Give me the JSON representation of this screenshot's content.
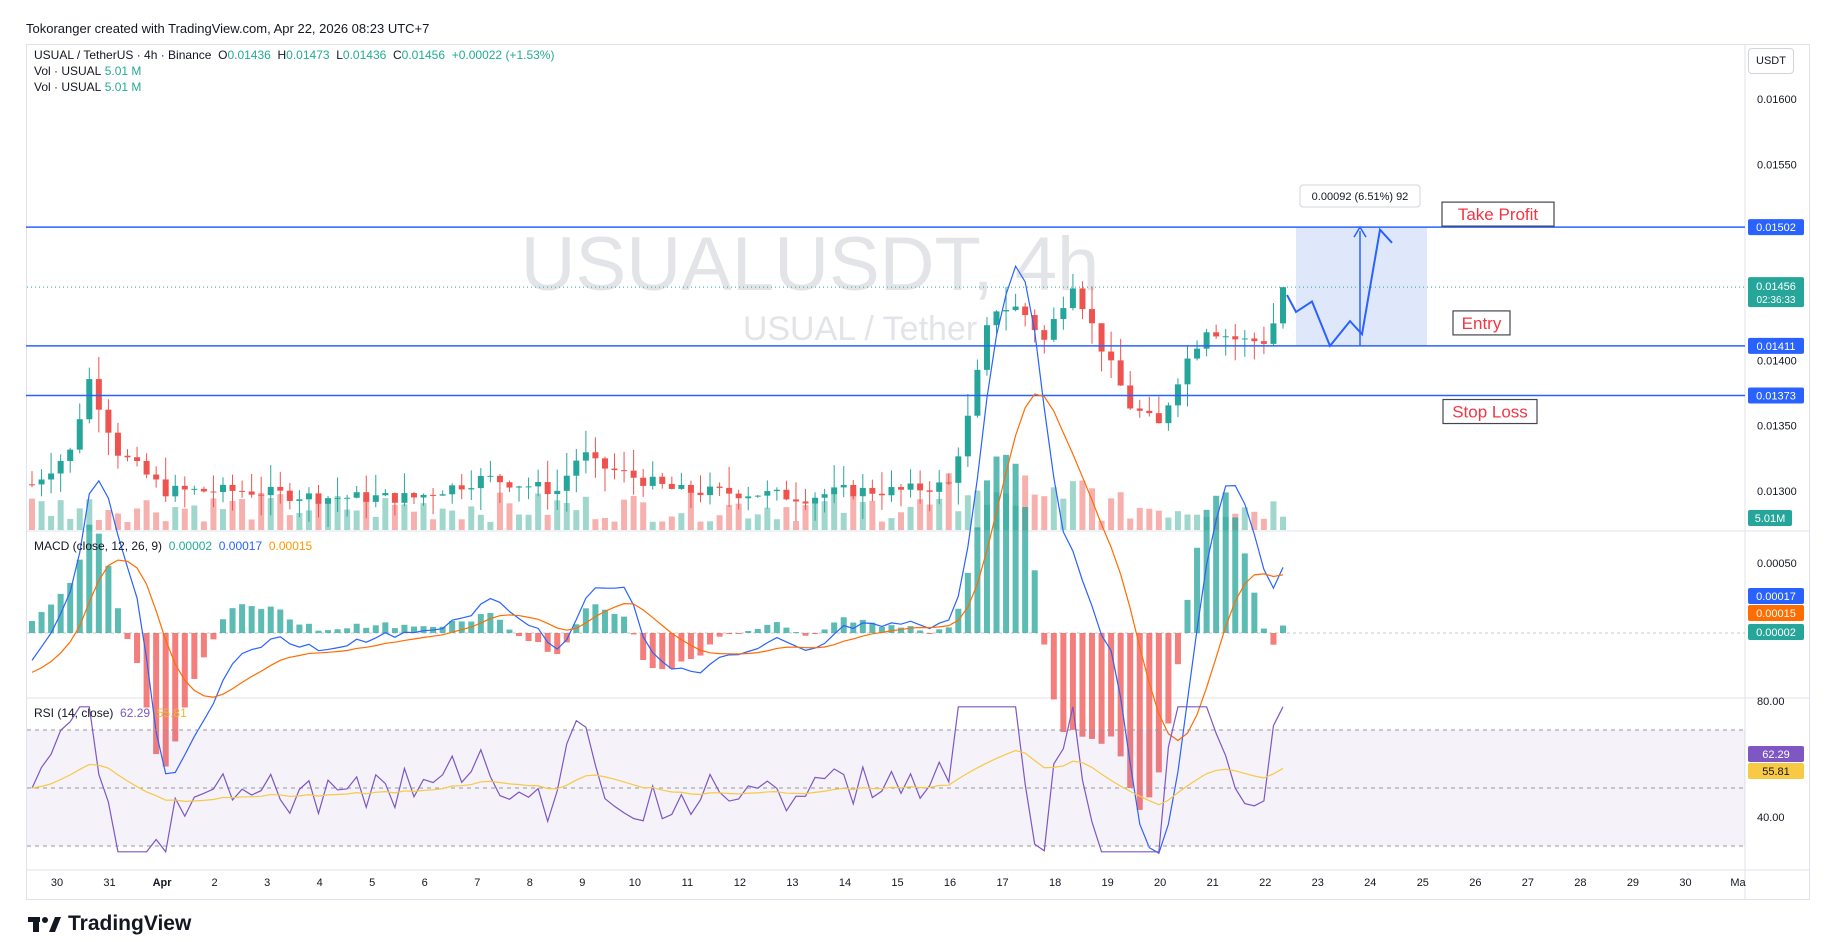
{
  "header": {
    "credit": "Tokoranger created with TradingView.com, Apr 22, 2026 08:23 UTC+7"
  },
  "legend": {
    "symbol": "USUAL / TetherUS · 4h · Binance",
    "o_label": "O",
    "o": "0.01436",
    "h_label": "H",
    "h": "0.01473",
    "l_label": "L",
    "l": "0.01436",
    "c_label": "C",
    "c": "0.01456",
    "change": "+0.00022 (+1.53%)",
    "vol1_label": "Vol · USUAL",
    "vol1": "5.01 M",
    "vol2_label": "Vol · USUAL",
    "vol2": "5.01 M"
  },
  "watermark": {
    "line1": "USUALUSDT, 4h",
    "line2": "USUAL / Tether"
  },
  "price_axis": {
    "unit": "USDT",
    "ticks": [
      "0.01600",
      "0.01550",
      "0.01500",
      "0.01450",
      "0.01400",
      "0.01350",
      "0.01300"
    ],
    "tick_values": [
      0.016,
      0.0155,
      0.015,
      0.0145,
      0.014,
      0.0135,
      0.013
    ],
    "range": [
      0.0127,
      0.0163
    ]
  },
  "levels": [
    {
      "name": "Take Profit",
      "value": 0.01502,
      "label": "0.01502",
      "color": "#2962ff",
      "text_color": "#f23645"
    },
    {
      "name": "Entry",
      "value": 0.01411,
      "label": "0.01411",
      "color": "#2962ff",
      "text_color": "#f23645"
    },
    {
      "name": "Stop Loss",
      "value": 0.01373,
      "label": "0.01373",
      "color": "#2962ff",
      "text_color": "#f23645"
    }
  ],
  "current_price": {
    "label": "0.01456",
    "countdown": "02:36:33",
    "value": 0.01456,
    "color": "#26a69a"
  },
  "volume_label": "5.01M",
  "measure": {
    "text": "0.00092 (6.51%) 92"
  },
  "x_axis": {
    "labels": [
      "30",
      "31",
      "Apr",
      "2",
      "3",
      "4",
      "5",
      "6",
      "7",
      "8",
      "9",
      "10",
      "11",
      "12",
      "13",
      "14",
      "15",
      "16",
      "17",
      "18",
      "19",
      "20",
      "21",
      "22",
      "23",
      "24",
      "25",
      "26",
      "27",
      "28",
      "29",
      "30",
      "Ma"
    ]
  },
  "macd": {
    "title": "MACD (close, 12, 26, 9)",
    "v1": "0.00002",
    "v2": "0.00017",
    "v3": "0.00015",
    "axis_ticks": [
      "0.00050"
    ],
    "axis_values": [
      0.0005
    ],
    "badge_macd": "0.00017",
    "badge_signal": "0.00015",
    "badge_hist": "0.00002",
    "colors": {
      "macd": "#2962ff",
      "signal": "#ff6d00",
      "hist_up": "#26a69a",
      "hist_down": "#ef5350"
    }
  },
  "rsi": {
    "title": "RSI (14, close)",
    "v1": "62.29",
    "v2": "55.81",
    "axis_ticks": [
      "80.00",
      "40.00"
    ],
    "axis_values": [
      80,
      40
    ],
    "badge_rsi": "62.29",
    "badge_ma": "55.81",
    "colors": {
      "rsi": "#7e57c2",
      "ma": "#f7c945"
    }
  },
  "brand": {
    "name": "TradingView"
  },
  "colors": {
    "up": "#26a69a",
    "down": "#ef5350",
    "level": "#2962ff",
    "zone": "#dbe5fb"
  }
}
